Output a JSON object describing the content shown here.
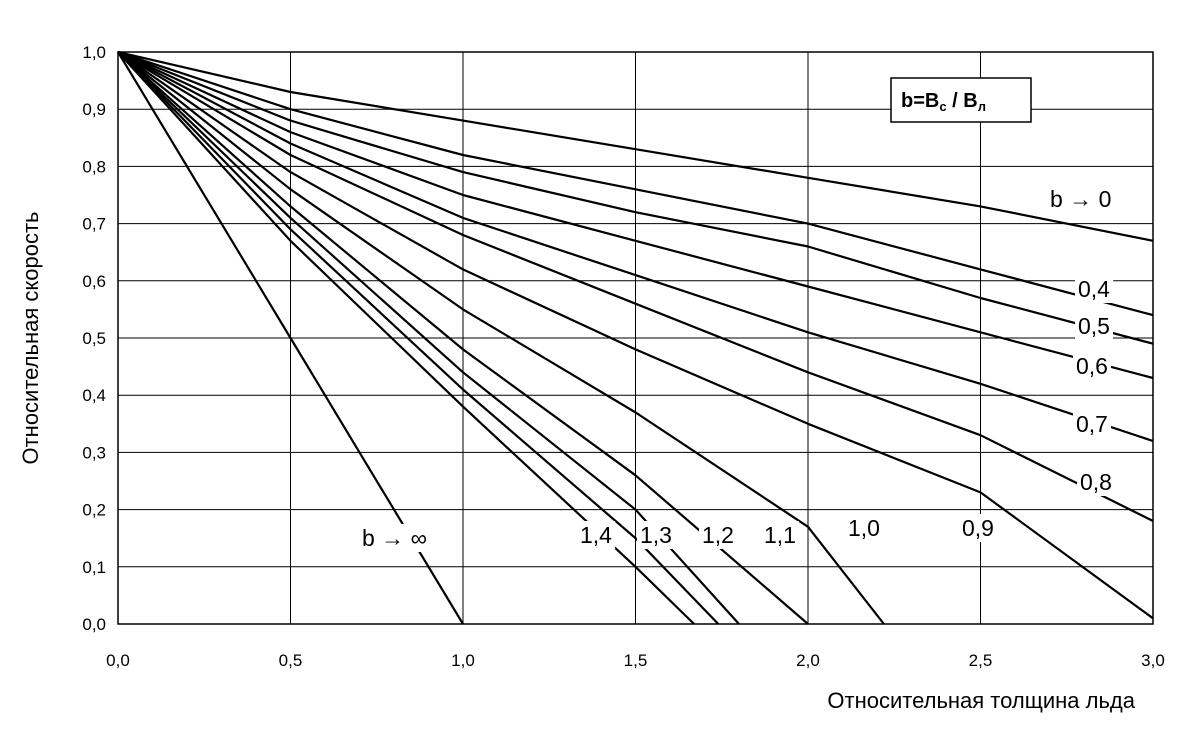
{
  "chart_data": {
    "type": "line",
    "xlabel": "Относительная толщина льда",
    "ylabel": "Относительная скорость",
    "xlim": [
      0,
      3
    ],
    "ylim": [
      0,
      1
    ],
    "x_ticks": [
      "0,0",
      "0,5",
      "1,0",
      "1,5",
      "2,0",
      "2,5",
      "3,0"
    ],
    "y_ticks": [
      "0,0",
      "0,1",
      "0,2",
      "0,3",
      "0,4",
      "0,5",
      "0,6",
      "0,7",
      "0,8",
      "0,9",
      "1,0"
    ],
    "grid": true,
    "legend": {
      "text": "b=B",
      "sub1": "c",
      "mid": " / B",
      "sub2": "л",
      "placement": "top-right"
    },
    "series": [
      {
        "name": "b → 0",
        "x": [
          0,
          0.5,
          1.0,
          1.5,
          2.0,
          2.5,
          3.0
        ],
        "y": [
          1.0,
          0.93,
          0.88,
          0.83,
          0.78,
          0.73,
          0.67
        ]
      },
      {
        "name": "0,4",
        "x": [
          0,
          0.5,
          1.0,
          1.5,
          2.0,
          2.5,
          3.0
        ],
        "y": [
          1.0,
          0.9,
          0.82,
          0.76,
          0.7,
          0.62,
          0.54
        ]
      },
      {
        "name": "0,5",
        "x": [
          0,
          0.5,
          1.0,
          1.5,
          2.0,
          2.5,
          3.0
        ],
        "y": [
          1.0,
          0.88,
          0.79,
          0.72,
          0.66,
          0.57,
          0.49
        ]
      },
      {
        "name": "0,6",
        "x": [
          0,
          0.5,
          1.0,
          1.5,
          2.0,
          2.5,
          3.0
        ],
        "y": [
          1.0,
          0.86,
          0.75,
          0.67,
          0.59,
          0.51,
          0.43
        ]
      },
      {
        "name": "0,7",
        "x": [
          0,
          0.5,
          1.0,
          1.5,
          2.0,
          2.5,
          3.0
        ],
        "y": [
          1.0,
          0.84,
          0.71,
          0.61,
          0.51,
          0.42,
          0.32
        ]
      },
      {
        "name": "0,8",
        "x": [
          0,
          0.5,
          1.0,
          1.5,
          2.0,
          2.5,
          3.0
        ],
        "y": [
          1.0,
          0.82,
          0.68,
          0.56,
          0.44,
          0.33,
          0.18
        ]
      },
      {
        "name": "0,9",
        "x": [
          0,
          0.5,
          1.0,
          1.5,
          2.0,
          2.5,
          3.0
        ],
        "y": [
          1.0,
          0.79,
          0.62,
          0.48,
          0.35,
          0.23,
          0.01
        ]
      },
      {
        "name": "1,0",
        "x": [
          0,
          0.5,
          1.0,
          1.5,
          2.0,
          2.22
        ],
        "y": [
          1.0,
          0.76,
          0.55,
          0.37,
          0.17,
          0.0
        ]
      },
      {
        "name": "1,1",
        "x": [
          0,
          0.5,
          1.0,
          1.5,
          2.0
        ],
        "y": [
          1.0,
          0.73,
          0.48,
          0.26,
          0.0
        ]
      },
      {
        "name": "1,2",
        "x": [
          0,
          0.5,
          1.0,
          1.5,
          1.8
        ],
        "y": [
          1.0,
          0.71,
          0.44,
          0.2,
          0.0
        ]
      },
      {
        "name": "1,3",
        "x": [
          0,
          0.5,
          1.0,
          1.5,
          1.74
        ],
        "y": [
          1.0,
          0.69,
          0.41,
          0.15,
          0.0
        ]
      },
      {
        "name": "1,4",
        "x": [
          0,
          0.5,
          1.0,
          1.5,
          1.67
        ],
        "y": [
          1.0,
          0.67,
          0.38,
          0.1,
          0.0
        ]
      },
      {
        "name": "b → ∞",
        "x": [
          0,
          0.5,
          1.0
        ],
        "y": [
          1.0,
          0.5,
          0.0
        ]
      }
    ]
  }
}
